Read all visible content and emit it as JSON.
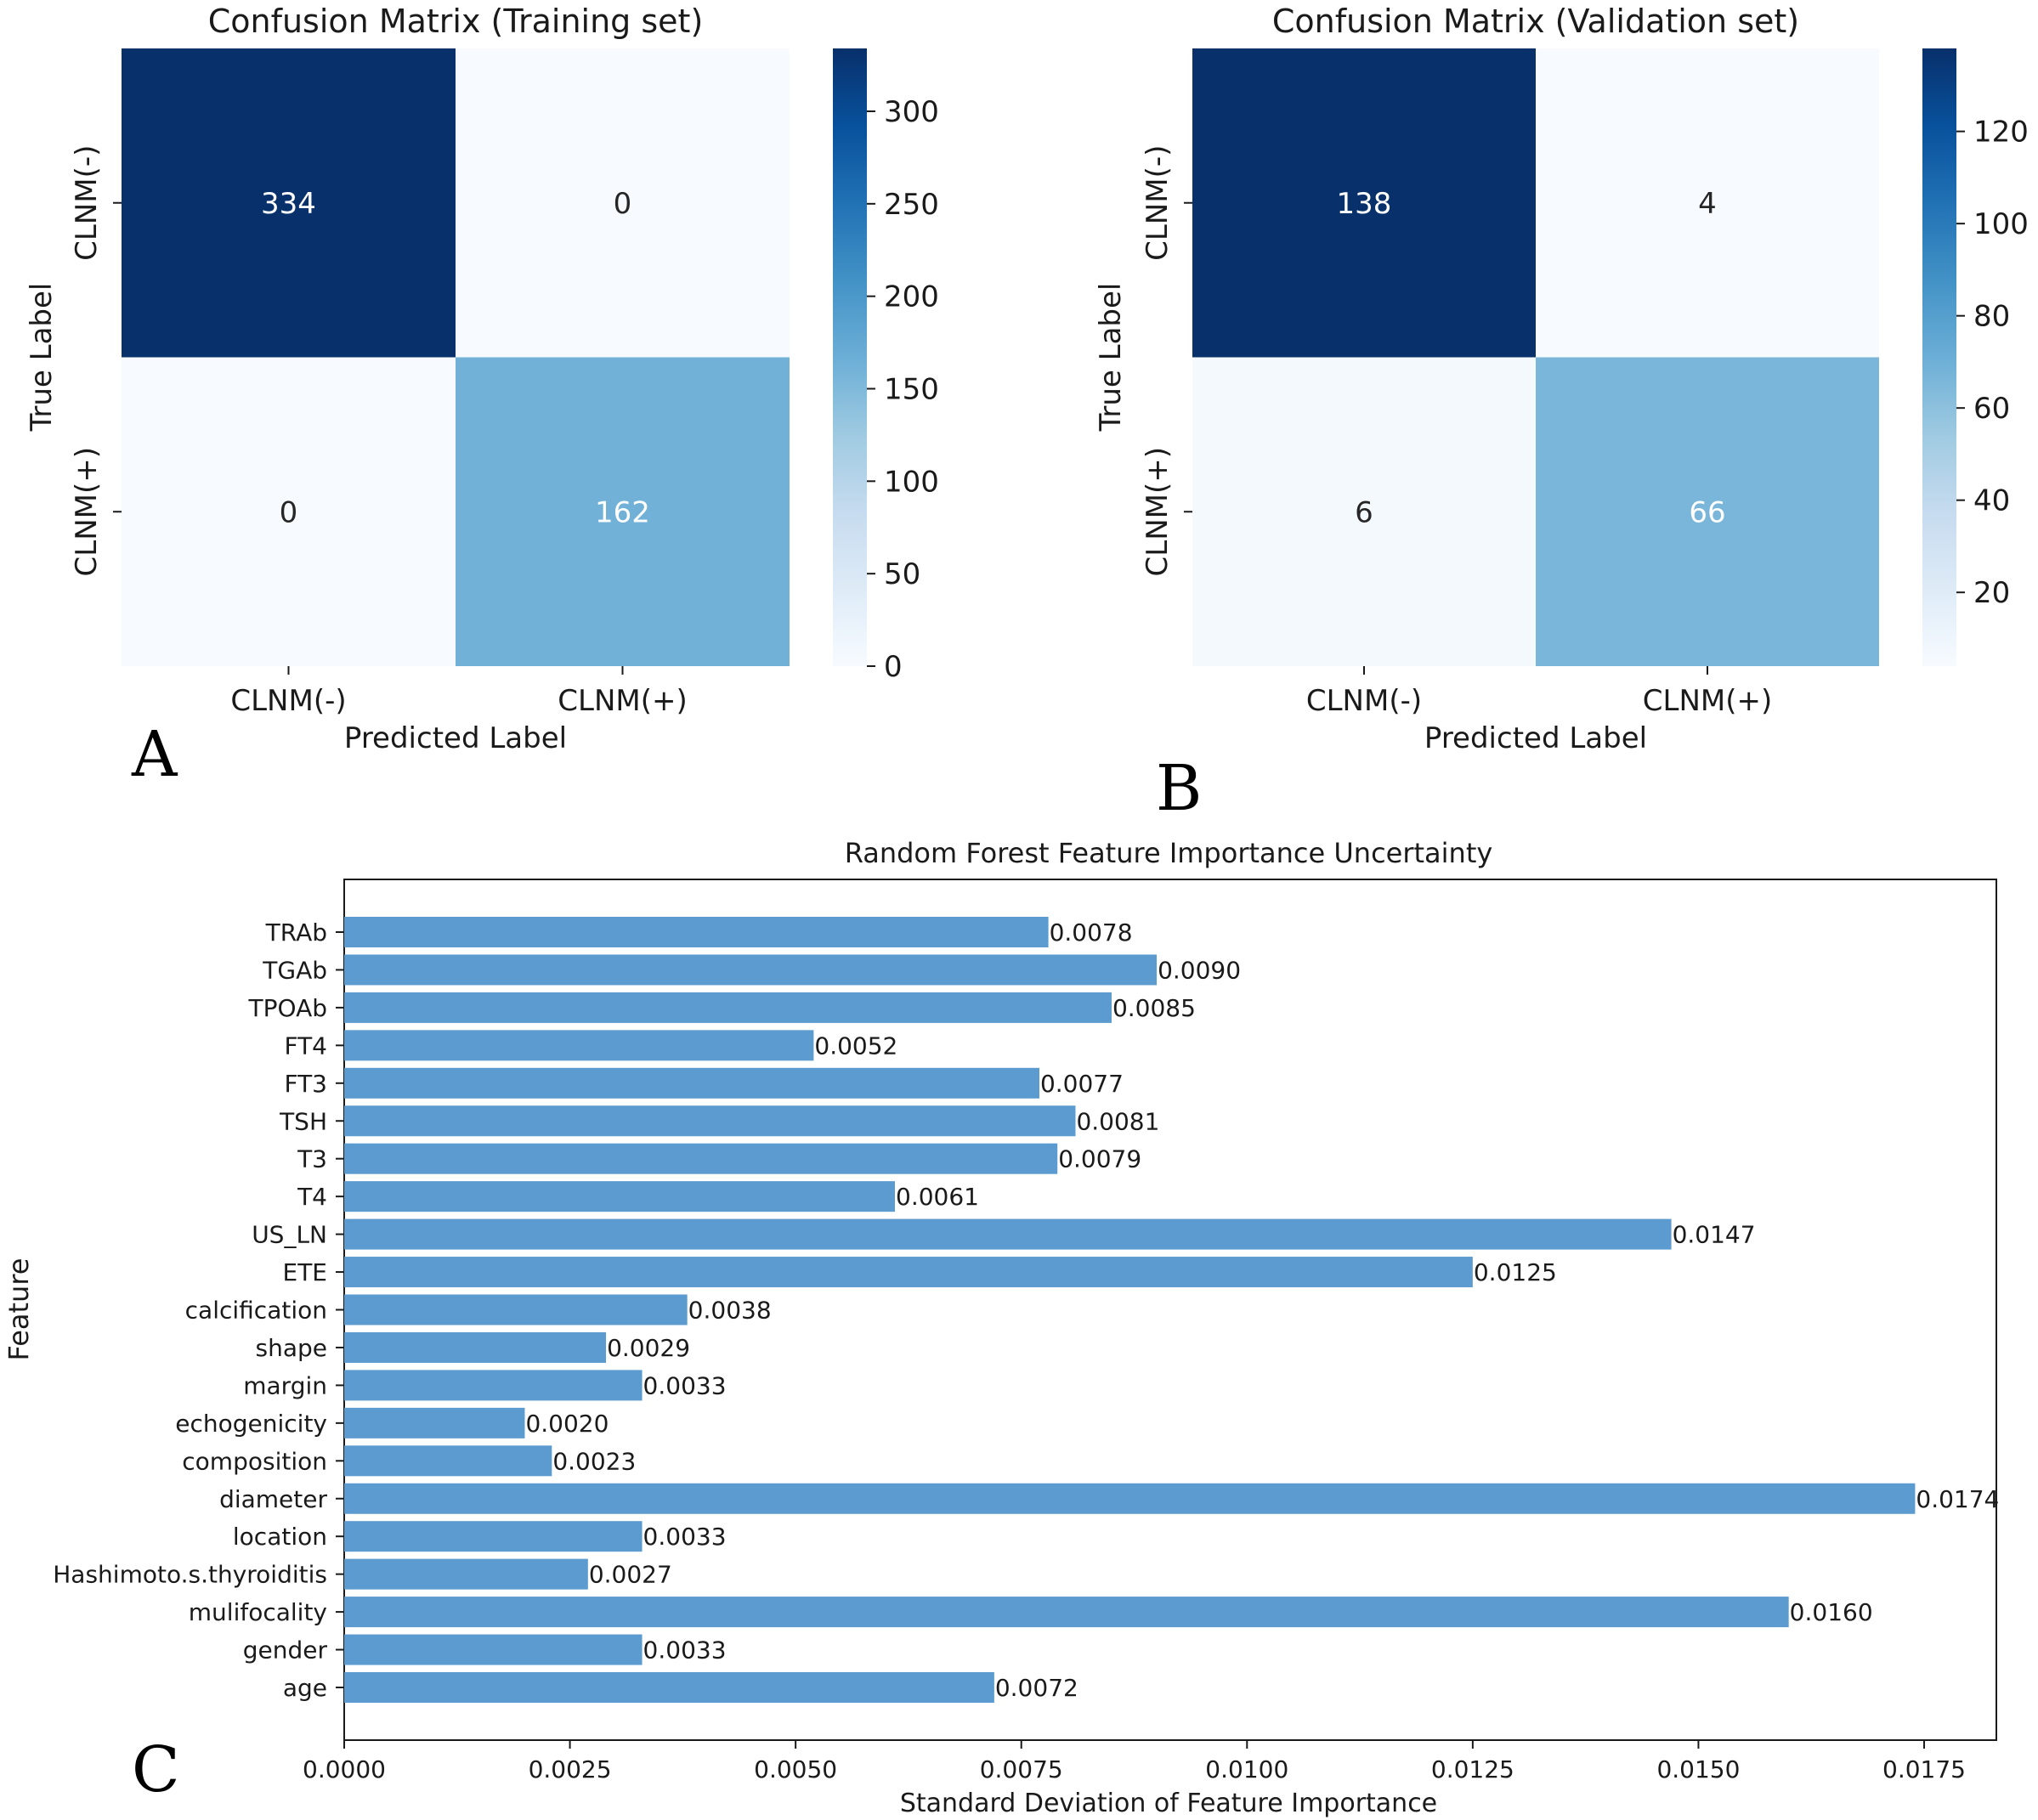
{
  "panels": {
    "a": "A",
    "b": "B",
    "c": "C"
  },
  "chart_data": [
    {
      "type": "heatmap",
      "title": "Confusion Matrix (Training set)",
      "xlabel": "Predicted Label",
      "ylabel": "True Label",
      "x_categories": [
        "CLNM(-)",
        "CLNM(+)"
      ],
      "y_categories": [
        "CLNM(-)",
        "CLNM(+)"
      ],
      "values": [
        [
          334,
          0
        ],
        [
          0,
          162
        ]
      ],
      "colorbar": {
        "min": 0,
        "max": 334,
        "ticks": [
          "0",
          "50",
          "100",
          "150",
          "200",
          "250",
          "300"
        ]
      },
      "colormap": [
        "#f7fbff",
        "#deebf7",
        "#c6dbef",
        "#9ecae1",
        "#6baed6",
        "#4292c6",
        "#2171b5",
        "#08519c",
        "#08306b"
      ]
    },
    {
      "type": "heatmap",
      "title": "Confusion Matrix (Validation set)",
      "xlabel": "Predicted Label",
      "ylabel": "True Label",
      "x_categories": [
        "CLNM(-)",
        "CLNM(+)"
      ],
      "y_categories": [
        "CLNM(-)",
        "CLNM(+)"
      ],
      "values": [
        [
          138,
          4
        ],
        [
          6,
          66
        ]
      ],
      "colorbar": {
        "min": 4,
        "max": 138,
        "ticks": [
          "20",
          "40",
          "60",
          "80",
          "100",
          "120"
        ]
      },
      "colormap": [
        "#f7fbff",
        "#deebf7",
        "#c6dbef",
        "#9ecae1",
        "#6baed6",
        "#4292c6",
        "#2171b5",
        "#08519c",
        "#08306b"
      ]
    },
    {
      "type": "bar",
      "orientation": "horizontal",
      "title": "Random Forest Feature Importance Uncertainty",
      "xlabel": "Standard Deviation of Feature Importance",
      "ylabel": "Feature",
      "categories": [
        "TRAb",
        "TGAb",
        "TPOAb",
        "FT4",
        "FT3",
        "TSH",
        "T3",
        "T4",
        "US_LN",
        "ETE",
        "calcification",
        "shape",
        "margin",
        "echogenicity",
        "composition",
        "diameter",
        "location",
        "Hashimoto.s.thyroiditis",
        "mulifocality",
        "gender",
        "age"
      ],
      "values": [
        0.0078,
        0.009,
        0.0085,
        0.0052,
        0.0077,
        0.0081,
        0.0079,
        0.0061,
        0.0147,
        0.0125,
        0.0038,
        0.0029,
        0.0033,
        0.002,
        0.0023,
        0.0174,
        0.0033,
        0.0027,
        0.016,
        0.0033,
        0.0072
      ],
      "value_labels": [
        "0.0078",
        "0.0090",
        "0.0085",
        "0.0052",
        "0.0077",
        "0.0081",
        "0.0079",
        "0.0061",
        "0.0147",
        "0.0125",
        "0.0038",
        "0.0029",
        "0.0033",
        "0.0020",
        "0.0023",
        "0.0174",
        "0.0033",
        "0.0027",
        "0.0160",
        "0.0033",
        "0.0072"
      ],
      "xlim": [
        0,
        0.0183
      ],
      "xticks": [
        0,
        0.0025,
        0.005,
        0.0075,
        0.01,
        0.0125,
        0.015,
        0.0175
      ],
      "xtick_labels": [
        "0.0000",
        "0.0025",
        "0.0050",
        "0.0075",
        "0.0100",
        "0.0125",
        "0.0150",
        "0.0175"
      ],
      "bar_color": "#5b9bd0"
    }
  ]
}
